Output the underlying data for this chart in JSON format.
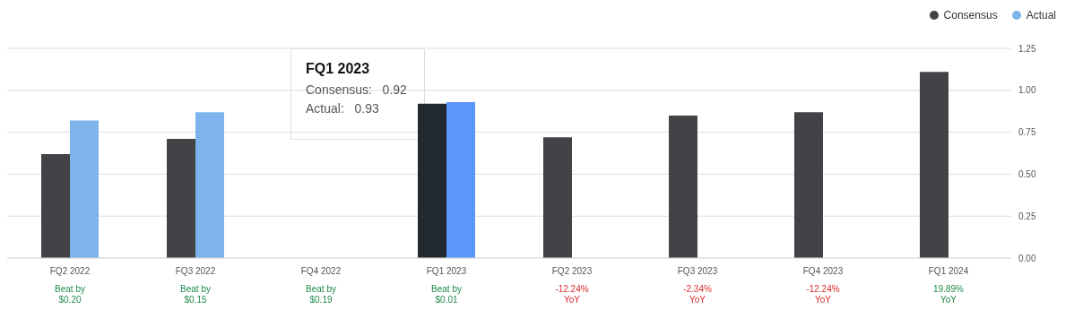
{
  "chart_data": {
    "type": "bar",
    "categories": [
      "FQ2 2022",
      "FQ3 2022",
      "FQ4 2022",
      "FQ1 2023",
      "FQ2 2023",
      "FQ3 2023",
      "FQ4 2023",
      "FQ1 2024"
    ],
    "series": [
      {
        "name": "Consensus",
        "color": "#434246",
        "colors": [
          "#434246",
          "#434246",
          "#434246",
          "#22292f",
          "#434246",
          "#434246",
          "#434246",
          "#434246"
        ],
        "values": [
          0.62,
          0.71,
          null,
          0.92,
          0.72,
          0.85,
          0.87,
          1.11
        ]
      },
      {
        "name": "Actual",
        "color": "#7db4ec",
        "colors": [
          "#7db4ec",
          "#7db4ec",
          "#7db4ec",
          "#5a96fb",
          "#7db4ec",
          "#7db4ec",
          "#7db4ec",
          "#7db4ec"
        ],
        "values": [
          0.82,
          0.87,
          null,
          0.93,
          null,
          null,
          null,
          null
        ]
      }
    ],
    "ylim": [
      0,
      1.25
    ],
    "yticks": [
      {
        "value": 0,
        "label": "0.00"
      },
      0.25,
      {
        "value": 0.5,
        "label": "0.50"
      },
      0.75,
      {
        "value": 1,
        "label": "1.00"
      },
      1.25
    ],
    "grid": "y",
    "legend": "top right",
    "annotations": [
      "Beat by\n$0.20",
      "Beat by\n$0.15",
      "Beat by\n$0.19",
      "Beat by\n$0.01",
      "-12.24%\nYoY",
      "-2.34%\nYoY",
      "-12.24%\nYoY",
      "19.89%\nYoY",
      "FQ1 2023\nConsensus:   0.92\nActual:   0.93"
    ]
  }
}
